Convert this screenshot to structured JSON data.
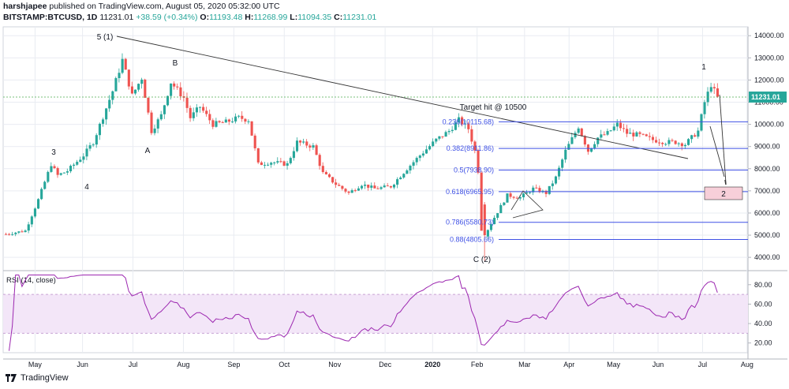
{
  "header": {
    "author": "harshjapee",
    "published": "published on TradingView.com, August 05, 2020 05:32:00 UTC",
    "symbol": "BITSTAMP:BTCUSD, 1D",
    "last": "11231.01",
    "change": "+38.59 (+0.34%)",
    "o_label": "O:",
    "o": "11193.48",
    "h_label": "H:",
    "h": "11268.99",
    "l_label": "L:",
    "l": "11094.35",
    "c_label": "C:",
    "c": "11231.01"
  },
  "footer": {
    "brand": "TradingView"
  },
  "colors": {
    "up": "#26a69a",
    "down": "#ef5350",
    "fib": "#3f51e5",
    "rsi": "#9c27b0",
    "rsi_band": "#f3e6f8",
    "grid": "#e9ecf2"
  },
  "chart_data": {
    "type": "candlestick",
    "time_labels": [
      "May",
      "Jun",
      "Jul",
      "Aug",
      "Sep",
      "Oct",
      "Nov",
      "Dec",
      "2020",
      "Feb",
      "Mar",
      "Apr",
      "May",
      "Jun",
      "Jul",
      "Aug"
    ],
    "price_axis": {
      "ticks": [
        "14000.00",
        "13000.00",
        "12000.00",
        "11000.00",
        "10000.00",
        "9000.00",
        "8000.00",
        "7000.00",
        "6000.00",
        "5000.00",
        "4000.00"
      ],
      "range": [
        3400,
        14400
      ],
      "last_label": "11231.01"
    },
    "rsi_axis": {
      "title": "RSI (14, close)",
      "ticks": [
        "80.00",
        "60.00",
        "40.00",
        "20.00"
      ],
      "range": [
        10,
        92
      ],
      "band": [
        30,
        70
      ]
    },
    "series_anchors": [
      {
        "t": 0,
        "p": 5050
      },
      {
        "t": 6,
        "p": 5200
      },
      {
        "t": 10,
        "p": 6600
      },
      {
        "t": 14,
        "p": 8200
      },
      {
        "t": 16,
        "p": 7700
      },
      {
        "t": 19,
        "p": 7900
      },
      {
        "t": 24,
        "p": 8600
      },
      {
        "t": 27,
        "p": 9200
      },
      {
        "t": 33,
        "p": 11500
      },
      {
        "t": 36,
        "p": 12900
      },
      {
        "t": 39,
        "p": 11300
      },
      {
        "t": 42,
        "p": 12100
      },
      {
        "t": 45,
        "p": 9700
      },
      {
        "t": 48,
        "p": 10400
      },
      {
        "t": 51,
        "p": 11900
      },
      {
        "t": 55,
        "p": 11200
      },
      {
        "t": 57,
        "p": 10300
      },
      {
        "t": 60,
        "p": 10800
      },
      {
        "t": 64,
        "p": 10000
      },
      {
        "t": 68,
        "p": 10100
      },
      {
        "t": 72,
        "p": 10300
      },
      {
        "t": 75,
        "p": 10200
      },
      {
        "t": 78,
        "p": 8200
      },
      {
        "t": 82,
        "p": 8300
      },
      {
        "t": 87,
        "p": 8200
      },
      {
        "t": 90,
        "p": 9200
      },
      {
        "t": 95,
        "p": 9000
      },
      {
        "t": 98,
        "p": 7800
      },
      {
        "t": 102,
        "p": 7300
      },
      {
        "t": 106,
        "p": 6900
      },
      {
        "t": 110,
        "p": 7300
      },
      {
        "t": 114,
        "p": 7100
      },
      {
        "t": 119,
        "p": 7200
      },
      {
        "t": 124,
        "p": 8000
      },
      {
        "t": 128,
        "p": 8600
      },
      {
        "t": 133,
        "p": 9300
      },
      {
        "t": 137,
        "p": 9700
      },
      {
        "t": 140,
        "p": 10200
      },
      {
        "t": 143,
        "p": 9800
      },
      {
        "t": 145,
        "p": 8800
      },
      {
        "t": 146,
        "p": 7900
      },
      {
        "t": 148,
        "p": 5000
      },
      {
        "t": 151,
        "p": 5800
      },
      {
        "t": 155,
        "p": 6800
      },
      {
        "t": 159,
        "p": 6700
      },
      {
        "t": 163,
        "p": 7100
      },
      {
        "t": 167,
        "p": 6900
      },
      {
        "t": 170,
        "p": 7600
      },
      {
        "t": 173,
        "p": 8800
      },
      {
        "t": 177,
        "p": 9900
      },
      {
        "t": 180,
        "p": 8800
      },
      {
        "t": 183,
        "p": 9400
      },
      {
        "t": 186,
        "p": 9600
      },
      {
        "t": 189,
        "p": 10000
      },
      {
        "t": 192,
        "p": 9600
      },
      {
        "t": 196,
        "p": 9500
      },
      {
        "t": 200,
        "p": 9300
      },
      {
        "t": 204,
        "p": 9200
      },
      {
        "t": 207,
        "p": 9200
      },
      {
        "t": 210,
        "p": 9100
      },
      {
        "t": 212,
        "p": 9400
      },
      {
        "t": 214,
        "p": 9700
      },
      {
        "t": 216,
        "p": 11000
      },
      {
        "t": 218,
        "p": 11800
      },
      {
        "t": 220,
        "p": 11200
      }
    ],
    "fib_levels": [
      {
        "label": "0.236(10115.68)",
        "price": 10115.68
      },
      {
        "label": "0.382(8911.86)",
        "price": 8911.86
      },
      {
        "label": "0.5(7938.90)",
        "price": 7938.9
      },
      {
        "label": "0.618(6965.95)",
        "price": 6965.95
      },
      {
        "label": "0.786(5580.73)",
        "price": 5580.73
      },
      {
        "label": "0.88(4805.66)",
        "price": 4805.66
      }
    ],
    "annotations": [
      {
        "text": "5 (1)"
      },
      {
        "text": "B"
      },
      {
        "text": "3"
      },
      {
        "text": "4"
      },
      {
        "text": "A"
      },
      {
        "text": "1"
      },
      {
        "text": "Target hit @ 10500"
      },
      {
        "text": "C (2)"
      },
      {
        "text": "2"
      }
    ]
  }
}
